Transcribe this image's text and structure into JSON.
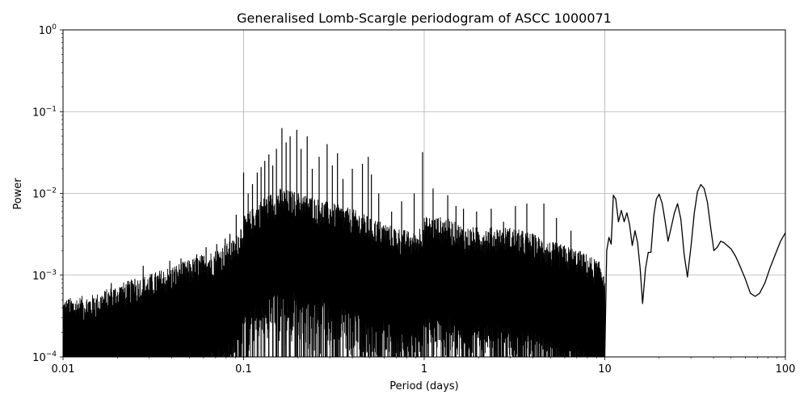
{
  "chart_data": {
    "type": "line",
    "title": "Generalised Lomb-Scargle periodogram of ASCC 1000071",
    "xlabel": "Period (days)",
    "ylabel": "Power",
    "xscale": "log",
    "yscale": "log",
    "xlim": [
      0.01,
      100
    ],
    "ylim": [
      0.0001,
      1
    ],
    "grid": true,
    "line_color": "#000000",
    "grid_color": "#b0b0b0",
    "x_ticks": [
      {
        "value": 0.01,
        "label": "0.01"
      },
      {
        "value": 0.1,
        "label": "0.1"
      },
      {
        "value": 1,
        "label": "1"
      },
      {
        "value": 10,
        "label": "10"
      },
      {
        "value": 100,
        "label": "100"
      }
    ],
    "y_ticks": [
      {
        "value": 0.0001,
        "mantissa": "10",
        "exponent": "−4"
      },
      {
        "value": 0.001,
        "mantissa": "10",
        "exponent": "−3"
      },
      {
        "value": 0.01,
        "mantissa": "10",
        "exponent": "−2"
      },
      {
        "value": 0.1,
        "mantissa": "10",
        "exponent": "−1"
      },
      {
        "value": 1,
        "mantissa": "10",
        "exponent": "0"
      }
    ],
    "envelope": {
      "x": [
        0.01,
        0.015,
        0.02,
        0.03,
        0.05,
        0.07,
        0.09,
        0.1,
        0.13,
        0.16,
        0.2,
        0.3,
        0.4,
        0.5,
        0.7,
        0.9,
        1.0,
        1.3,
        1.7,
        2.2,
        3,
        4,
        5,
        6,
        7,
        8,
        9,
        10
      ],
      "y": [
        0.0004,
        0.00045,
        0.0006,
        0.0008,
        0.0012,
        0.0016,
        0.0022,
        0.004,
        0.007,
        0.009,
        0.008,
        0.006,
        0.005,
        0.004,
        0.003,
        0.0025,
        0.004,
        0.004,
        0.003,
        0.003,
        0.003,
        0.0025,
        0.002,
        0.0018,
        0.0016,
        0.0014,
        0.0012,
        0.001
      ]
    },
    "peaks": [
      {
        "x": 0.0108,
        "y": 0.0005
      },
      {
        "x": 0.0148,
        "y": 0.00052
      },
      {
        "x": 0.0185,
        "y": 0.0008
      },
      {
        "x": 0.0208,
        "y": 0.0007
      },
      {
        "x": 0.025,
        "y": 0.0009
      },
      {
        "x": 0.0278,
        "y": 0.0013
      },
      {
        "x": 0.0325,
        "y": 0.001
      },
      {
        "x": 0.039,
        "y": 0.0015
      },
      {
        "x": 0.045,
        "y": 0.0016
      },
      {
        "x": 0.055,
        "y": 0.0018
      },
      {
        "x": 0.062,
        "y": 0.0022
      },
      {
        "x": 0.071,
        "y": 0.0024
      },
      {
        "x": 0.079,
        "y": 0.0028
      },
      {
        "x": 0.084,
        "y": 0.0032
      },
      {
        "x": 0.091,
        "y": 0.0055
      },
      {
        "x": 0.1,
        "y": 0.018
      },
      {
        "x": 0.106,
        "y": 0.01
      },
      {
        "x": 0.112,
        "y": 0.013
      },
      {
        "x": 0.119,
        "y": 0.018
      },
      {
        "x": 0.125,
        "y": 0.021
      },
      {
        "x": 0.131,
        "y": 0.025
      },
      {
        "x": 0.138,
        "y": 0.03
      },
      {
        "x": 0.145,
        "y": 0.022
      },
      {
        "x": 0.152,
        "y": 0.035
      },
      {
        "x": 0.163,
        "y": 0.063
      },
      {
        "x": 0.172,
        "y": 0.042
      },
      {
        "x": 0.181,
        "y": 0.05
      },
      {
        "x": 0.197,
        "y": 0.06
      },
      {
        "x": 0.208,
        "y": 0.035
      },
      {
        "x": 0.225,
        "y": 0.05
      },
      {
        "x": 0.24,
        "y": 0.02
      },
      {
        "x": 0.262,
        "y": 0.028
      },
      {
        "x": 0.29,
        "y": 0.04
      },
      {
        "x": 0.31,
        "y": 0.022
      },
      {
        "x": 0.331,
        "y": 0.031
      },
      {
        "x": 0.355,
        "y": 0.015
      },
      {
        "x": 0.4,
        "y": 0.02
      },
      {
        "x": 0.455,
        "y": 0.023
      },
      {
        "x": 0.49,
        "y": 0.028
      },
      {
        "x": 0.51,
        "y": 0.017
      },
      {
        "x": 0.56,
        "y": 0.01
      },
      {
        "x": 0.66,
        "y": 0.006
      },
      {
        "x": 0.75,
        "y": 0.008
      },
      {
        "x": 0.88,
        "y": 0.01
      },
      {
        "x": 0.98,
        "y": 0.032
      },
      {
        "x": 1.12,
        "y": 0.0115
      },
      {
        "x": 1.35,
        "y": 0.0095
      },
      {
        "x": 1.5,
        "y": 0.007
      },
      {
        "x": 1.65,
        "y": 0.0065
      },
      {
        "x": 1.95,
        "y": 0.006
      },
      {
        "x": 2.35,
        "y": 0.0065
      },
      {
        "x": 2.75,
        "y": 0.0045
      },
      {
        "x": 3.2,
        "y": 0.007
      },
      {
        "x": 3.7,
        "y": 0.0075
      },
      {
        "x": 4.6,
        "y": 0.0075
      },
      {
        "x": 5.4,
        "y": 0.005
      },
      {
        "x": 6.5,
        "y": 0.0035
      },
      {
        "x": 7.5,
        "y": 0.0012
      },
      {
        "x": 8.6,
        "y": 0.00075
      }
    ],
    "smooth_curve": {
      "x": [
        10.0,
        10.25,
        10.55,
        10.85,
        11.15,
        11.5,
        11.9,
        12.35,
        12.8,
        13.25,
        13.7,
        14.2,
        14.7,
        15.2,
        15.7,
        16.2,
        16.8,
        17.4,
        18.0,
        18.7,
        19.3,
        20.0,
        20.8,
        21.6,
        22.4,
        23.3,
        24.3,
        25.3,
        26.4,
        27.5,
        28.7,
        30.0,
        31.3,
        32.6,
        34.0,
        35.5,
        37.0,
        38.6,
        40.2,
        42.0,
        43.8,
        45.7,
        47.7,
        50.0,
        53.0,
        56.0,
        60.0,
        64.0,
        68.0,
        72.0,
        77.0,
        82.0,
        88.0,
        94.0,
        100.0
      ],
      "y": [
        0.0001,
        0.002,
        0.0029,
        0.0024,
        0.0095,
        0.0085,
        0.0045,
        0.0062,
        0.0045,
        0.0058,
        0.0042,
        0.0023,
        0.0035,
        0.0025,
        0.0012,
        0.00045,
        0.0012,
        0.0019,
        0.0019,
        0.0055,
        0.0085,
        0.0098,
        0.0075,
        0.0045,
        0.0026,
        0.0038,
        0.0058,
        0.0075,
        0.0048,
        0.0018,
        0.00095,
        0.0022,
        0.0058,
        0.0105,
        0.0128,
        0.0115,
        0.0078,
        0.0038,
        0.002,
        0.0022,
        0.0026,
        0.0025,
        0.0023,
        0.0021,
        0.0017,
        0.0013,
        0.0009,
        0.0006,
        0.00055,
        0.0006,
        0.0008,
        0.0012,
        0.0018,
        0.0026,
        0.0033
      ]
    }
  }
}
